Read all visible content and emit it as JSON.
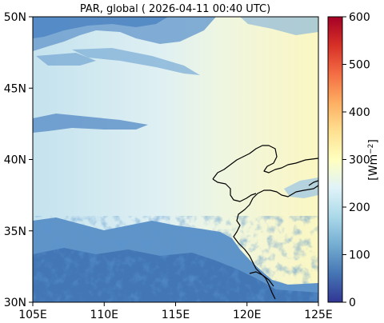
{
  "title": "PAR, global ( 2026-04-11 00:40 UTC)",
  "map": {
    "lon_range": [
      105,
      125
    ],
    "lat_range": [
      30,
      50
    ],
    "x_ticks": [
      {
        "value": 105,
        "label": "105E"
      },
      {
        "value": 110,
        "label": "110E"
      },
      {
        "value": 115,
        "label": "115E"
      },
      {
        "value": 120,
        "label": "120E"
      },
      {
        "value": 125,
        "label": "125E"
      }
    ],
    "y_ticks": [
      {
        "value": 30,
        "label": "30N"
      },
      {
        "value": 35,
        "label": "35N"
      },
      {
        "value": 40,
        "label": "40N"
      },
      {
        "value": 45,
        "label": "45N"
      },
      {
        "value": 50,
        "label": "50N"
      }
    ],
    "coastline_color": "#000000"
  },
  "colorbar": {
    "label": "[Wm",
    "label_sup": "−2",
    "label_end": "]",
    "range": [
      0,
      600
    ],
    "colormap": "RdYlBu_r",
    "ticks": [
      {
        "value": 0,
        "label": "0"
      },
      {
        "value": 100,
        "label": "100"
      },
      {
        "value": 200,
        "label": "200"
      },
      {
        "value": 300,
        "label": "300"
      },
      {
        "value": 400,
        "label": "400"
      },
      {
        "value": 500,
        "label": "500"
      },
      {
        "value": 600,
        "label": "600"
      }
    ],
    "stops": [
      "#313695",
      "#4575b4",
      "#74add1",
      "#abd9e9",
      "#e0f3f8",
      "#ffffbf",
      "#fee090",
      "#fdae61",
      "#f46d43",
      "#d73027",
      "#a50026"
    ]
  }
}
